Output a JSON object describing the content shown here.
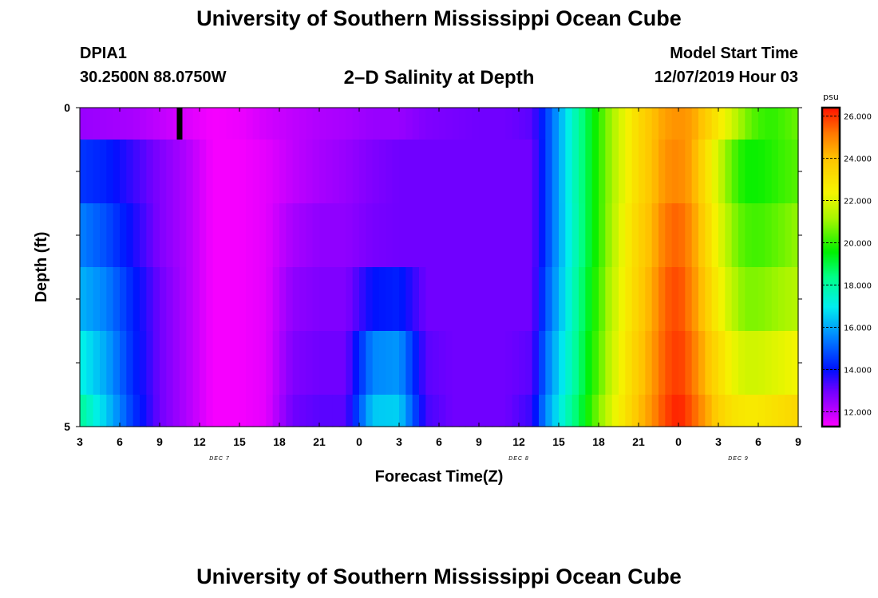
{
  "page": {
    "title_top": "University of Southern Mississippi Ocean Cube",
    "title_bottom": "University of Southern Mississippi Ocean Cube",
    "station": "DPIA1",
    "coordinates": "30.2500N 88.0750W",
    "plot_title": "2–D Salinity at Depth",
    "model_start_label": "Model Start Time",
    "model_start_value": "12/07/2019 Hour 03"
  },
  "chart_data": {
    "type": "heatmap",
    "title": "2–D Salinity at Depth",
    "xlabel": "Forecast Time(Z)",
    "ylabel": "Depth (ft)",
    "x_tick_labels": [
      "3",
      "6",
      "9",
      "12",
      "15",
      "18",
      "21",
      "0",
      "3",
      "6",
      "9",
      "12",
      "15",
      "18",
      "21",
      "0",
      "3",
      "6",
      "9"
    ],
    "x_range_hours": [
      0,
      54
    ],
    "day_labels": [
      {
        "label": "DEC 7",
        "hour": 10.5
      },
      {
        "label": "DEC 8",
        "hour": 33
      },
      {
        "label": "DEC 9",
        "hour": 49.5
      }
    ],
    "y_range": [
      0,
      5
    ],
    "y_tick_labels": [
      {
        "value": 0,
        "label": "0"
      },
      {
        "value": 1,
        "label": ""
      },
      {
        "value": 2,
        "label": ""
      },
      {
        "value": 3,
        "label": ""
      },
      {
        "value": 4,
        "label": ""
      },
      {
        "value": 5,
        "label": "5"
      }
    ],
    "depth_bins": [
      [
        0,
        0.5
      ],
      [
        0.5,
        1.5
      ],
      [
        1.5,
        2.5
      ],
      [
        2.5,
        3.5
      ],
      [
        3.5,
        4.5
      ],
      [
        4.5,
        5
      ]
    ],
    "colorbar": {
      "unit": "psu",
      "min": 11.3,
      "max": 26.4,
      "ticks": [
        "12.000",
        "14.000",
        "16.000",
        "18.000",
        "20.000",
        "22.000",
        "24.000",
        "26.000"
      ],
      "tick_values": [
        12,
        14,
        16,
        18,
        20,
        22,
        24,
        26
      ]
    },
    "marker": {
      "hour": 7.5,
      "depth_from": 0,
      "depth_to": 0.5
    },
    "salinity_profiles": [
      {
        "name": "0.0 ft",
        "hours": [
          0,
          2,
          4,
          6,
          8,
          10,
          12,
          14,
          16,
          18,
          20,
          22,
          24,
          26,
          28,
          30,
          32,
          34,
          35,
          36,
          37,
          38,
          39,
          40,
          41,
          42,
          43,
          44,
          45,
          46,
          47,
          48,
          49,
          50,
          51,
          52,
          53,
          54
        ],
        "values": [
          12.5,
          12.4,
          12.3,
          12.0,
          11.7,
          11.4,
          11.5,
          11.8,
          12.0,
          12.2,
          12.3,
          12.5,
          12.5,
          12.8,
          12.9,
          13.0,
          13.0,
          13.2,
          14.5,
          16.0,
          17.5,
          18.8,
          20.0,
          21.2,
          22.3,
          23.3,
          24.0,
          24.6,
          24.8,
          24.6,
          23.8,
          22.8,
          21.8,
          20.8,
          20.2,
          20.0,
          20.3,
          20.6
        ]
      },
      {
        "name": "1.0 ft",
        "hours": [
          0,
          2,
          4,
          6,
          8,
          10,
          12,
          14,
          16,
          18,
          20,
          22,
          24,
          26,
          28,
          30,
          32,
          34,
          35,
          36,
          37,
          38,
          39,
          40,
          41,
          42,
          43,
          44,
          45,
          46,
          47,
          48,
          49,
          50,
          51,
          52,
          53,
          54
        ],
        "values": [
          14.5,
          14.2,
          13.5,
          12.8,
          12.2,
          11.4,
          11.4,
          11.6,
          12.0,
          12.3,
          12.5,
          12.8,
          13.0,
          13.0,
          13.0,
          13.0,
          13.0,
          13.0,
          14.5,
          16.0,
          17.5,
          18.8,
          20.0,
          21.2,
          22.3,
          23.3,
          24.0,
          24.8,
          25.0,
          24.5,
          23.2,
          21.8,
          20.5,
          19.7,
          19.7,
          19.9,
          20.2,
          20.4
        ]
      },
      {
        "name": "2.0 ft",
        "hours": [
          0,
          2,
          4,
          6,
          8,
          10,
          12,
          14,
          16,
          18,
          20,
          22,
          24,
          26,
          28,
          30,
          32,
          34,
          35,
          36,
          37,
          38,
          39,
          40,
          41,
          42,
          43,
          44,
          45,
          46,
          47,
          48,
          49,
          50,
          51,
          52,
          53,
          54
        ],
        "values": [
          15.5,
          14.8,
          13.8,
          12.8,
          12.2,
          11.4,
          11.4,
          11.6,
          12.3,
          12.6,
          12.6,
          12.9,
          13.0,
          13.0,
          13.0,
          13.0,
          13.0,
          13.0,
          14.5,
          16.0,
          17.4,
          18.8,
          20.0,
          21.3,
          22.5,
          23.5,
          24.2,
          25.2,
          25.5,
          24.8,
          23.5,
          22.2,
          21.0,
          20.3,
          20.2,
          20.4,
          20.7,
          21.0
        ]
      },
      {
        "name": "3.0 ft",
        "hours": [
          0,
          2,
          4,
          6,
          8,
          10,
          12,
          14,
          16,
          18,
          20,
          22,
          24,
          26,
          28,
          30,
          32,
          34,
          35,
          36,
          37,
          38,
          39,
          40,
          41,
          42,
          43,
          44,
          45,
          46,
          47,
          48,
          49,
          50,
          51,
          52,
          53,
          54
        ],
        "values": [
          16.2,
          15.5,
          14.2,
          13.0,
          12.2,
          11.4,
          11.4,
          11.6,
          12.6,
          12.8,
          12.8,
          14.0,
          14.2,
          13.0,
          13.0,
          13.0,
          13.0,
          13.0,
          14.8,
          16.2,
          17.6,
          19.0,
          20.2,
          21.5,
          22.6,
          23.6,
          24.4,
          25.5,
          25.8,
          25.0,
          23.8,
          22.6,
          21.5,
          20.8,
          20.8,
          21.0,
          21.2,
          21.4
        ]
      },
      {
        "name": "4.0 ft",
        "hours": [
          0,
          2,
          4,
          6,
          8,
          10,
          12,
          14,
          16,
          18,
          20,
          22,
          24,
          26,
          28,
          30,
          32,
          34,
          35,
          36,
          37,
          38,
          39,
          40,
          41,
          42,
          43,
          44,
          45,
          46,
          47,
          48,
          49,
          50,
          51,
          52,
          53,
          54
        ],
        "values": [
          17.2,
          16.0,
          14.3,
          13.0,
          12.2,
          11.4,
          11.4,
          11.6,
          12.8,
          13.0,
          13.0,
          15.6,
          15.8,
          13.2,
          13.0,
          13.0,
          13.0,
          13.2,
          15.2,
          16.6,
          17.8,
          19.2,
          20.4,
          21.7,
          22.8,
          23.8,
          24.6,
          25.6,
          26.0,
          25.3,
          24.2,
          23.2,
          22.3,
          21.8,
          21.8,
          22.0,
          22.2,
          22.4
        ]
      },
      {
        "name": "5.0 ft",
        "hours": [
          0,
          2,
          4,
          6,
          8,
          10,
          12,
          14,
          16,
          18,
          20,
          22,
          24,
          26,
          28,
          30,
          32,
          34,
          35,
          36,
          37,
          38,
          39,
          40,
          41,
          42,
          43,
          44,
          45,
          46,
          47,
          48,
          49,
          50,
          51,
          52,
          53,
          54
        ],
        "values": [
          18.2,
          16.5,
          14.5,
          13.0,
          12.2,
          11.4,
          11.4,
          11.6,
          13.0,
          13.2,
          13.2,
          16.5,
          16.6,
          13.4,
          13.0,
          13.0,
          13.0,
          13.5,
          15.6,
          17.0,
          18.2,
          19.5,
          20.8,
          22.0,
          23.0,
          24.0,
          24.8,
          25.8,
          26.3,
          25.6,
          24.6,
          23.6,
          23.0,
          22.8,
          22.8,
          23.0,
          23.2,
          23.4
        ]
      }
    ]
  }
}
